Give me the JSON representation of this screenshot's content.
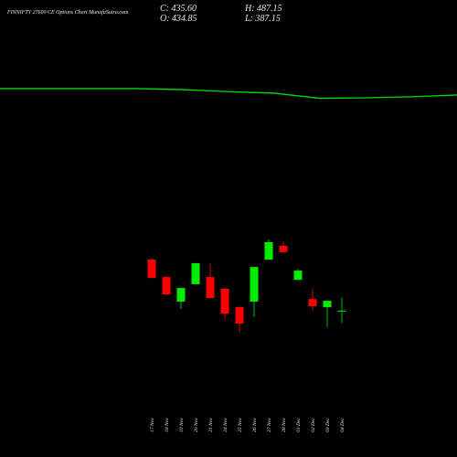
{
  "chart_data": {
    "type": "candlestick",
    "title": "FINNIFTY 27600 CE Options  Chart MunafaSutra.com",
    "ohlc_labels": [
      "C: 435.60",
      "O: 434.85",
      "H: 487.15",
      "L: 387.15"
    ],
    "categories": [
      "17 Nov",
      "18 Nov",
      "19 Nov",
      "20 Nov",
      "21 Nov",
      "24 Nov",
      "25 Nov",
      "26 Nov",
      "27 Nov",
      "28 Nov",
      "01 Dec",
      "02 Dec",
      "03 Dec",
      "04 Dec"
    ],
    "open": [
      635,
      567,
      471,
      539,
      567,
      521,
      449,
      471,
      635,
      689,
      556,
      481,
      449,
      434.85
    ],
    "high": [
      638,
      570,
      524,
      621,
      621,
      525,
      452,
      606,
      714,
      706,
      599,
      524,
      474,
      487.15
    ],
    "low": [
      562,
      496,
      442,
      539,
      485,
      399,
      349,
      410,
      635,
      664,
      556,
      435,
      371,
      387.15
    ],
    "close": [
      564,
      499,
      524,
      621,
      485,
      424,
      385,
      606,
      703,
      664,
      592,
      453,
      474,
      435.6
    ],
    "up_color": "#00ee00",
    "down_color": "#ff0000",
    "line": {
      "color": "#00dd00",
      "values": [
        1303,
        1303,
        1303,
        1303,
        1299,
        1291,
        1285,
        1265,
        1267,
        1271,
        1278
      ]
    },
    "ylim": [
      -136,
      1649
    ]
  }
}
